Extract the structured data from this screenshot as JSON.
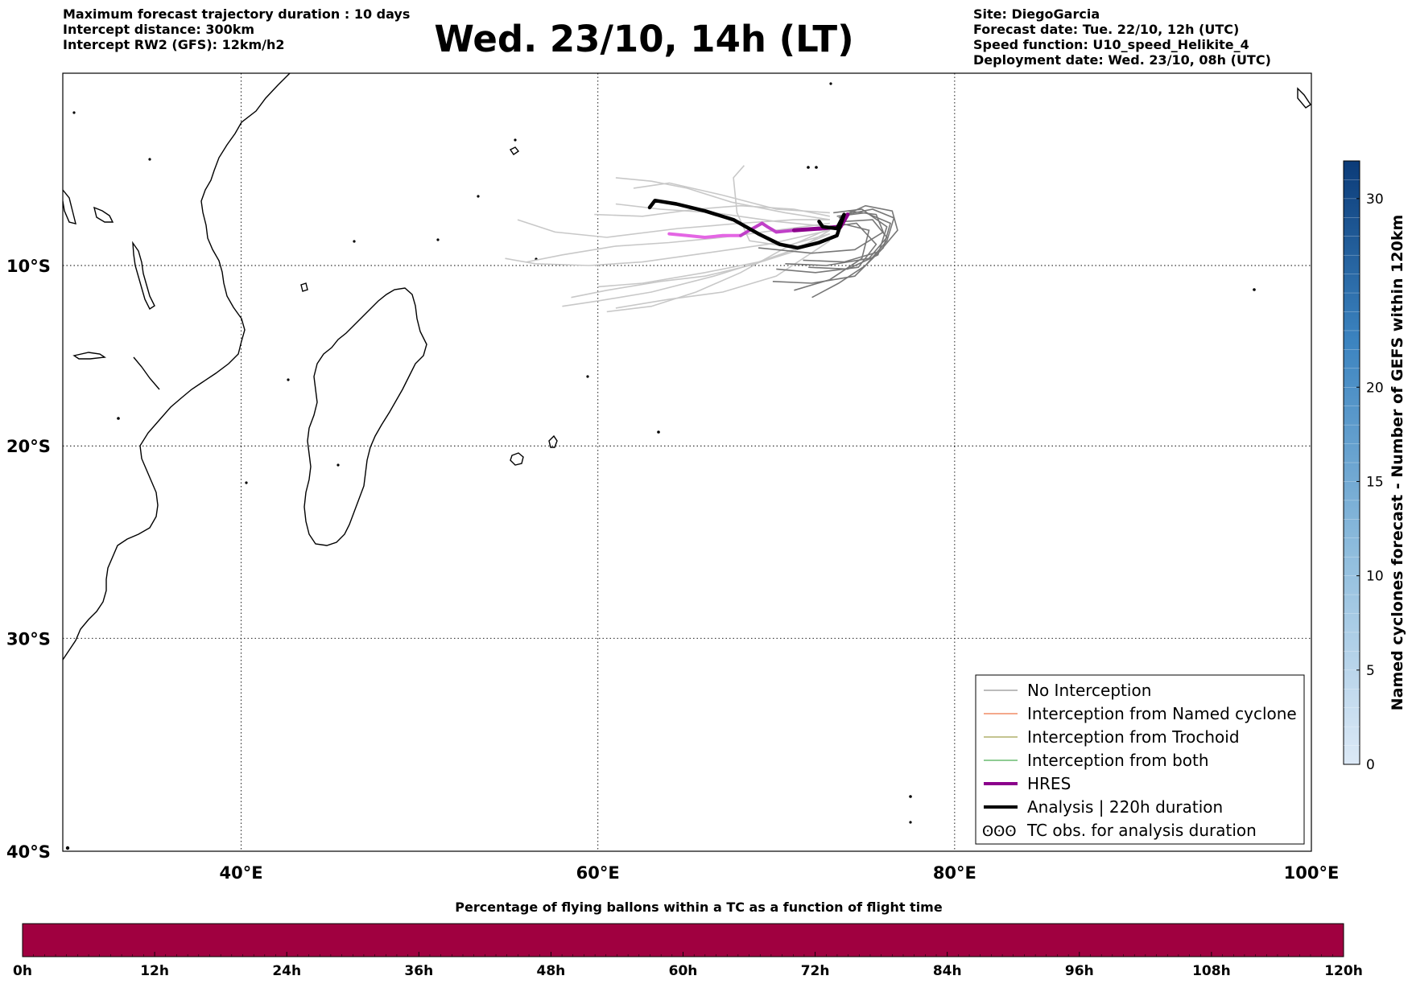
{
  "header": {
    "left_lines": [
      "Maximum forecast trajectory duration : 10 days",
      "Intercept distance: 300km",
      "Intercept RW2 (GFS):  12km/h2"
    ],
    "title": "Wed. 23/10, 14h (LT)",
    "right_lines": [
      "Site: DiegoGarcia",
      "Forecast date: Tue. 22/10, 12h (UTC)",
      "Speed function: U10_speed_Helikite_4",
      "Deployment date: Wed. 23/10, 08h (UTC)"
    ]
  },
  "map": {
    "lon_range": [
      30,
      100
    ],
    "lat_range": [
      -40,
      1
    ],
    "lon_ticks": [
      {
        "value": 40,
        "label": "40°E"
      },
      {
        "value": 60,
        "label": "60°E"
      },
      {
        "value": 80,
        "label": "80°E"
      },
      {
        "value": 100,
        "label": "100°E"
      }
    ],
    "lat_ticks": [
      {
        "value": -10,
        "label": "10°S"
      },
      {
        "value": -20,
        "label": "20°S"
      },
      {
        "value": -30,
        "label": "30°S"
      },
      {
        "value": -40,
        "label": "40°S"
      }
    ],
    "grid": "dotted",
    "colors": {
      "no_interception": "#777777",
      "no_interception_light": "#c8c8c8",
      "named": "#e8501a",
      "trochoid": "#8a8a20",
      "both": "#1f9a2a",
      "hres": "#8b008b",
      "hres_light": "#e466e4",
      "analysis": "#000000"
    }
  },
  "legend": {
    "items": [
      {
        "label": "No Interception",
        "color": "#777777",
        "width": 1
      },
      {
        "label": "Interception from Named cyclone",
        "color": "#e8501a",
        "width": 1
      },
      {
        "label": "Interception from Trochoid",
        "color": "#8a8a20",
        "width": 1
      },
      {
        "label": "Interception from both",
        "color": "#1f9a2a",
        "width": 1
      },
      {
        "label": "HRES",
        "color": "#8b008b",
        "width": 4
      },
      {
        "label": "Analysis | 220h duration",
        "color": "#000000",
        "width": 4
      },
      {
        "label": "TC obs. for analysis duration",
        "color": "#000000",
        "width": 0,
        "symbol": "ʘʘʘ"
      }
    ]
  },
  "colorbar_right": {
    "label": "Named cyclones forecast - Number of GEFS within 120km",
    "ticks": [
      0,
      5,
      10,
      15,
      20,
      30
    ],
    "range": [
      0,
      32
    ],
    "color_low": "#dce9f6",
    "color_high": "#0b3b78"
  },
  "colorbar_bottom": {
    "title": "Percentage of flying ballons within a TC as a function of flight time",
    "ticks": [
      "0h",
      "12h",
      "24h",
      "36h",
      "48h",
      "60h",
      "72h",
      "84h",
      "96h",
      "108h",
      "120h"
    ],
    "fill_color": "#a00040"
  },
  "trajectories": {
    "ensemble_dark": [
      [
        [
          73.5,
          -7.3
        ],
        [
          75.0,
          -6.6
        ],
        [
          76.5,
          -6.9
        ],
        [
          76.8,
          -8.0
        ],
        [
          75.8,
          -9.2
        ],
        [
          73.8,
          -9.8
        ],
        [
          71.5,
          -9.7
        ]
      ],
      [
        [
          73.8,
          -7.5
        ],
        [
          75.4,
          -7.4
        ],
        [
          76.2,
          -8.4
        ],
        [
          75.2,
          -9.6
        ],
        [
          72.8,
          -10.0
        ],
        [
          70.5,
          -9.9
        ]
      ],
      [
        [
          73.2,
          -7.0
        ],
        [
          74.8,
          -6.8
        ],
        [
          76.2,
          -7.8
        ],
        [
          75.7,
          -9.4
        ],
        [
          74.0,
          -10.2
        ],
        [
          71.8,
          -10.1
        ]
      ],
      [
        [
          73.0,
          -7.8
        ],
        [
          74.5,
          -7.6
        ],
        [
          75.6,
          -8.8
        ],
        [
          74.6,
          -10.1
        ],
        [
          72.2,
          -10.4
        ],
        [
          70.0,
          -10.2
        ]
      ],
      [
        [
          73.4,
          -7.2
        ],
        [
          75.0,
          -7.0
        ],
        [
          76.4,
          -7.6
        ],
        [
          76.0,
          -9.0
        ],
        [
          74.4,
          -10.6
        ],
        [
          72.0,
          -11.0
        ],
        [
          69.8,
          -10.9
        ]
      ],
      [
        [
          74.0,
          -6.9
        ],
        [
          75.6,
          -7.1
        ],
        [
          76.0,
          -8.1
        ],
        [
          74.4,
          -9.1
        ],
        [
          72.0,
          -9.3
        ],
        [
          69.0,
          -9.0
        ]
      ],
      [
        [
          73.6,
          -7.6
        ],
        [
          75.2,
          -8.0
        ],
        [
          74.8,
          -9.6
        ],
        [
          73.0,
          -10.8
        ],
        [
          71.0,
          -11.4
        ]
      ],
      [
        [
          73.9,
          -7.1
        ],
        [
          75.4,
          -6.8
        ],
        [
          76.6,
          -7.3
        ],
        [
          76.2,
          -8.6
        ],
        [
          75.0,
          -10.0
        ],
        [
          73.5,
          -11.0
        ],
        [
          72.0,
          -11.8
        ]
      ]
    ],
    "ensemble_light": [
      [
        [
          73.0,
          -7.0
        ],
        [
          70.0,
          -6.8
        ],
        [
          67.0,
          -6.0
        ],
        [
          64.0,
          -5.3
        ],
        [
          62.0,
          -5.6
        ]
      ],
      [
        [
          73.0,
          -7.8
        ],
        [
          70.0,
          -7.5
        ],
        [
          66.5,
          -7.0
        ],
        [
          63.5,
          -6.8
        ],
        [
          61.0,
          -6.5
        ]
      ],
      [
        [
          73.0,
          -8.0
        ],
        [
          69.5,
          -8.8
        ],
        [
          66.0,
          -9.3
        ],
        [
          62.5,
          -9.8
        ],
        [
          59.5,
          -10.0
        ],
        [
          56.5,
          -9.9
        ],
        [
          54.8,
          -9.6
        ]
      ],
      [
        [
          73.0,
          -8.4
        ],
        [
          69.0,
          -9.8
        ],
        [
          66.0,
          -10.4
        ],
        [
          62.5,
          -11.0
        ],
        [
          60.0,
          -11.2
        ]
      ],
      [
        [
          73.0,
          -8.6
        ],
        [
          70.0,
          -10.6
        ],
        [
          67.0,
          -11.5
        ],
        [
          64.0,
          -11.9
        ],
        [
          61.0,
          -12.4
        ]
      ],
      [
        [
          73.0,
          -8.2
        ],
        [
          70.0,
          -9.5
        ],
        [
          66.5,
          -10.6
        ],
        [
          63.0,
          -11.5
        ],
        [
          60.0,
          -12.0
        ],
        [
          58.0,
          -12.3
        ]
      ],
      [
        [
          73.0,
          -7.4
        ],
        [
          70.5,
          -7.0
        ],
        [
          67.5,
          -6.4
        ],
        [
          65.0,
          -5.6
        ],
        [
          63.0,
          -5.2
        ],
        [
          61.0,
          -5.0
        ]
      ],
      [
        [
          73.0,
          -7.6
        ],
        [
          70.0,
          -8.0
        ],
        [
          67.0,
          -8.4
        ],
        [
          64.0,
          -8.7
        ],
        [
          61.0,
          -8.9
        ],
        [
          58.0,
          -9.4
        ],
        [
          56.0,
          -9.8
        ]
      ],
      [
        [
          73.0,
          -7.9
        ],
        [
          70.5,
          -9.0
        ],
        [
          68.0,
          -10.4
        ],
        [
          65.5,
          -11.5
        ],
        [
          63.0,
          -12.3
        ],
        [
          60.5,
          -12.6
        ]
      ],
      [
        [
          73.0,
          -7.2
        ],
        [
          71.0,
          -6.8
        ],
        [
          68.0,
          -6.6
        ],
        [
          65.5,
          -6.8
        ],
        [
          62.5,
          -7.2
        ],
        [
          59.8,
          -7.1
        ]
      ],
      [
        [
          73.0,
          -8.2
        ],
        [
          70.5,
          -8.9
        ],
        [
          68.5,
          -8.6
        ],
        [
          67.8,
          -7.0
        ],
        [
          67.6,
          -5.0
        ],
        [
          68.2,
          -4.3
        ]
      ],
      [
        [
          73.0,
          -7.4
        ],
        [
          71.0,
          -7.4
        ],
        [
          68.0,
          -7.6
        ],
        [
          64.5,
          -7.9
        ],
        [
          60.5,
          -8.4
        ],
        [
          57.6,
          -8.1
        ],
        [
          55.5,
          -7.4
        ]
      ],
      [
        [
          73.0,
          -8.0
        ],
        [
          71.0,
          -9.2
        ],
        [
          68.5,
          -10.0
        ],
        [
          66.0,
          -10.6
        ],
        [
          63.5,
          -10.9
        ],
        [
          60.5,
          -11.4
        ],
        [
          58.5,
          -11.8
        ]
      ]
    ],
    "hres_light": [
      [
        68.0,
        -8.3
      ],
      [
        67.0,
        -8.3
      ],
      [
        66.0,
        -8.4
      ],
      [
        65.0,
        -8.3
      ],
      [
        64.0,
        -8.2
      ]
    ],
    "hres_mid": [
      [
        71.0,
        -8.0
      ],
      [
        70.0,
        -8.1
      ],
      [
        69.5,
        -7.8
      ],
      [
        69.2,
        -7.6
      ],
      [
        68.5,
        -8.0
      ],
      [
        68.0,
        -8.3
      ]
    ],
    "hres_dark": [
      [
        74.0,
        -7.1
      ],
      [
        73.6,
        -7.8
      ],
      [
        72.5,
        -7.9
      ],
      [
        71.0,
        -8.0
      ]
    ],
    "analysis": [
      [
        72.4,
        -7.5
      ],
      [
        72.6,
        -7.8
      ],
      [
        73.4,
        -7.9
      ],
      [
        73.8,
        -7.1
      ],
      [
        73.4,
        -8.3
      ],
      [
        72.4,
        -8.7
      ],
      [
        71.2,
        -9.0
      ],
      [
        70.2,
        -8.8
      ],
      [
        69.0,
        -8.2
      ],
      [
        67.6,
        -7.4
      ],
      [
        66.0,
        -6.9
      ],
      [
        64.4,
        -6.5
      ],
      [
        63.2,
        -6.3
      ],
      [
        62.9,
        -6.7
      ]
    ]
  }
}
